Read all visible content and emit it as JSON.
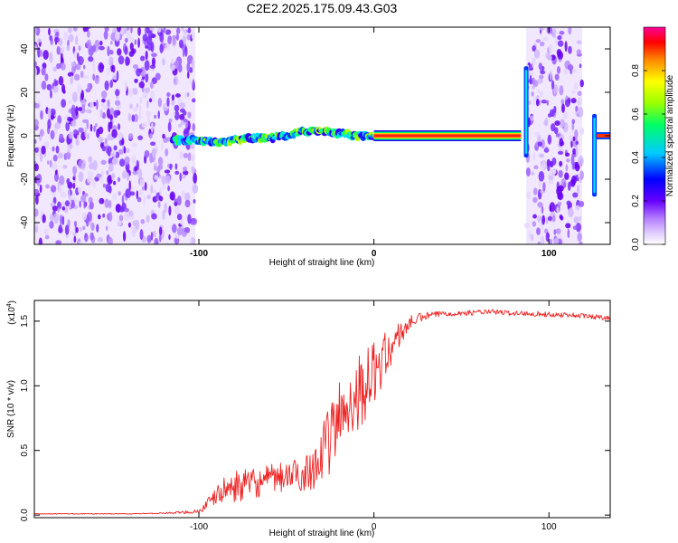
{
  "figure": {
    "title": "C2E2.2025.175.09.43.G03"
  },
  "chart_data": [
    {
      "type": "heatmap",
      "title": "C2E2.2025.175.09.43.G03",
      "xlabel": "Height of straight line (km)",
      "ylabel": "Frequency (Hz)",
      "xlim": [
        -194,
        135
      ],
      "ylim": [
        -50,
        50
      ],
      "xticks": [
        -100,
        0,
        100
      ],
      "yticks": [
        -40,
        -20,
        0,
        20,
        40
      ],
      "xticklabels": [
        "-100",
        "0",
        "100"
      ],
      "yticklabels": [
        "-40",
        "-20",
        "0",
        "20",
        "40"
      ],
      "colorbar": {
        "label": "Normalized spectral amplitude",
        "range": [
          0,
          1
        ],
        "ticks": [
          "0.0",
          "0.2",
          "0.4",
          "0.6",
          "0.8"
        ],
        "tick_values": [
          0.0,
          0.2,
          0.4,
          0.6,
          0.8
        ],
        "colors": [
          "#ffffff",
          "#cc99ff",
          "#6600ff",
          "#0000ff",
          "#00ccff",
          "#00ff66",
          "#99ff00",
          "#ffff00",
          "#ff8800",
          "#ff0000",
          "#ff0099"
        ]
      },
      "features": [
        {
          "name": "noise",
          "x_range": [
            -194,
            -102
          ]
        },
        {
          "name": "noise",
          "x_range": [
            87,
            119
          ]
        },
        {
          "name": "carrier",
          "x": [
            -115,
            -100,
            -90,
            -80,
            -70,
            -60,
            -50,
            -40,
            -30,
            -20,
            -10,
            0,
            10,
            80,
            84
          ],
          "y": [
            -2,
            -2,
            -3,
            -2,
            -1,
            -1,
            0,
            2,
            2,
            1,
            0,
            0,
            0,
            0,
            0
          ]
        },
        {
          "name": "spike",
          "x": 87,
          "y_range": [
            -10,
            32
          ]
        },
        {
          "name": "spike",
          "x": 126,
          "y_range": [
            -28,
            10
          ]
        }
      ],
      "grid": false,
      "legend": "none"
    },
    {
      "type": "line",
      "xlabel": "Height of straight line (km)",
      "ylabel": "SNR (10 * v/v)",
      "y_multiplier": "(x10",
      "y_multiplier_exp": "4",
      "xlim": [
        -194,
        135
      ],
      "ylim": [
        -0.02,
        1.66
      ],
      "xticks": [
        -100,
        0,
        100
      ],
      "yticks": [
        0.0,
        0.5,
        1.0,
        1.5
      ],
      "xticklabels": [
        "-100",
        "0",
        "100"
      ],
      "yticklabels": [
        "0.0",
        "0.5",
        "1.0",
        "1.5"
      ],
      "color": "#ee2222",
      "grid": false,
      "legend": "none",
      "series": [
        {
          "x": [
            -194,
            -180,
            -160,
            -140,
            -120,
            -110,
            -100,
            -95,
            -90,
            -85,
            -80,
            -75,
            -70,
            -65,
            -60,
            -55,
            -50,
            -45,
            -40,
            -35,
            -30,
            -25,
            -20,
            -15,
            -10,
            -5,
            0,
            5,
            10,
            15,
            20,
            25,
            30,
            35,
            40,
            50,
            60,
            70,
            80,
            90,
            100,
            110,
            120,
            130,
            135
          ],
          "y": [
            0.01,
            0.01,
            0.01,
            0.01,
            0.015,
            0.02,
            0.03,
            0.08,
            0.15,
            0.2,
            0.22,
            0.23,
            0.24,
            0.25,
            0.27,
            0.28,
            0.3,
            0.31,
            0.32,
            0.38,
            0.45,
            0.6,
            0.75,
            0.85,
            0.95,
            1.0,
            1.1,
            1.2,
            1.3,
            1.4,
            1.48,
            1.52,
            1.54,
            1.55,
            1.56,
            1.56,
            1.57,
            1.57,
            1.56,
            1.56,
            1.55,
            1.55,
            1.54,
            1.53,
            1.53
          ],
          "noise": [
            0.003,
            0.003,
            0.003,
            0.003,
            0.005,
            0.01,
            0.02,
            0.05,
            0.07,
            0.1,
            0.12,
            0.12,
            0.12,
            0.11,
            0.12,
            0.12,
            0.12,
            0.12,
            0.14,
            0.18,
            0.22,
            0.28,
            0.3,
            0.3,
            0.3,
            0.28,
            0.25,
            0.2,
            0.15,
            0.1,
            0.06,
            0.04,
            0.03,
            0.025,
            0.02,
            0.02,
            0.02,
            0.02,
            0.02,
            0.02,
            0.02,
            0.02,
            0.02,
            0.02,
            0.02
          ]
        }
      ]
    }
  ]
}
